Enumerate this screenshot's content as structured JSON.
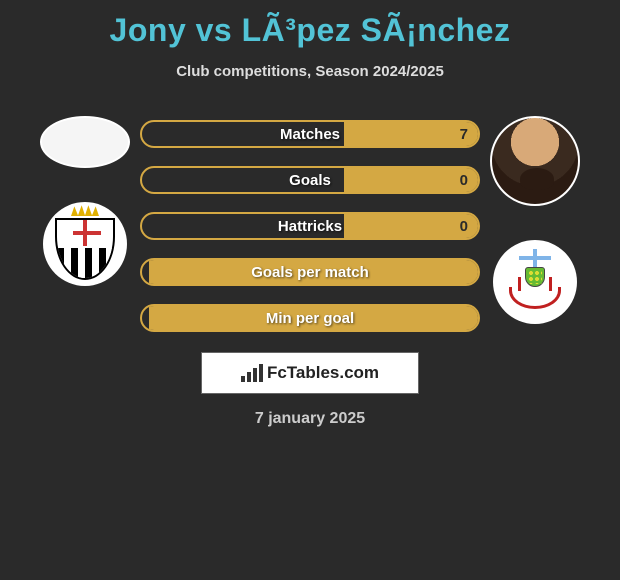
{
  "title": "Jony vs LÃ³pez SÃ¡nchez",
  "subtitle": "Club competitions, Season 2024/2025",
  "date": "7 january 2025",
  "brand": "FcTables.com",
  "colors": {
    "title": "#52c3d6",
    "bar_stroke": "#d4a843",
    "bar_fill": "#d4a843",
    "background": "#2a2a2a"
  },
  "stats": [
    {
      "label": "Matches",
      "left_value": "",
      "right_value": "7",
      "left_fill_pct": 0,
      "right_fill_pct": 40,
      "right_value_color": "#2a2a2a"
    },
    {
      "label": "Goals",
      "left_value": "",
      "right_value": "0",
      "left_fill_pct": 0,
      "right_fill_pct": 40,
      "right_value_color": "#2a2a2a"
    },
    {
      "label": "Hattricks",
      "left_value": "",
      "right_value": "0",
      "left_fill_pct": 0,
      "right_fill_pct": 40,
      "right_value_color": "#2a2a2a"
    },
    {
      "label": "Goals per match",
      "left_value": "",
      "right_value": "",
      "left_fill_pct": 0,
      "right_fill_pct": 98,
      "right_value_color": "#2a2a2a"
    },
    {
      "label": "Min per goal",
      "left_value": "",
      "right_value": "",
      "left_fill_pct": 0,
      "right_fill_pct": 98,
      "right_value_color": "#2a2a2a"
    }
  ]
}
